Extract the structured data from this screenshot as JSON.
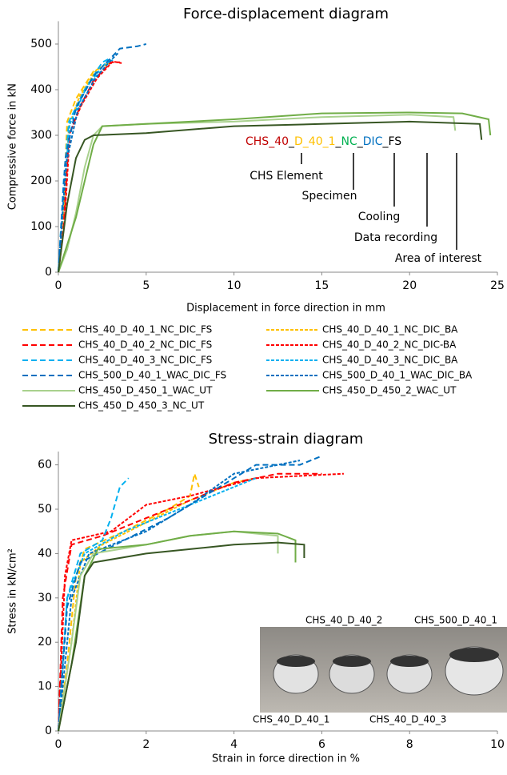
{
  "chart_data": [
    {
      "type": "line",
      "title": "Force-displacement diagram",
      "xlabel": "Displacement in force direction in mm",
      "ylabel": "Compressive force in kN",
      "xlim": [
        0,
        25
      ],
      "xticks": [
        0,
        5,
        10,
        15,
        20,
        25
      ],
      "ylim": [
        0,
        550
      ],
      "yticks": [
        0,
        100,
        200,
        300,
        400,
        500
      ],
      "grid": false,
      "series": [
        {
          "name": "CHS_40_D_40_1_NC_DIC_FS",
          "color": "#ffc000",
          "line_style": "long-dash",
          "x": [
            0,
            0.3,
            0.5,
            1,
            2,
            3
          ],
          "values": [
            0,
            150,
            330,
            380,
            440,
            460
          ]
        },
        {
          "name": "CHS_40_D_40_1_NC_DIC_BA",
          "color": "#ffc000",
          "line_style": "short-dash",
          "x": [
            0,
            0.35,
            0.6,
            1.2,
            2.2,
            3
          ],
          "values": [
            0,
            160,
            320,
            385,
            445,
            462
          ]
        },
        {
          "name": "CHS_40_D_40_2_NC_DIC_FS",
          "color": "#ff0000",
          "line_style": "long-dash",
          "x": [
            0,
            0.3,
            0.6,
            1.2,
            2,
            3,
            3.5
          ],
          "values": [
            0,
            100,
            300,
            360,
            420,
            460,
            460
          ]
        },
        {
          "name": "CHS_40_D_40_2_NC_DIC-BA",
          "color": "#ff0000",
          "line_style": "short-dash",
          "x": [
            0,
            0.35,
            0.65,
            1.3,
            2.2,
            3.1,
            3.6
          ],
          "values": [
            0,
            110,
            305,
            365,
            425,
            462,
            458
          ]
        },
        {
          "name": "CHS_40_D_40_3_NC_DIC_FS",
          "color": "#00b0f0",
          "line_style": "long-dash",
          "x": [
            0,
            0.3,
            0.6,
            1.5,
            2.5,
            3
          ],
          "values": [
            0,
            200,
            330,
            400,
            460,
            470
          ]
        },
        {
          "name": "CHS_40_D_40_3_NC_DIC_BA",
          "color": "#00b0f0",
          "line_style": "short-dash",
          "x": [
            0,
            0.35,
            0.65,
            1.6,
            2.6,
            3.1
          ],
          "values": [
            0,
            190,
            325,
            405,
            455,
            465
          ]
        },
        {
          "name": "CHS_500_D_40_1_WAC_DIC_FS",
          "color": "#0070c0",
          "line_style": "long-dash",
          "x": [
            0,
            0.4,
            1,
            2,
            3,
            3.5,
            4.5,
            5
          ],
          "values": [
            0,
            250,
            360,
            430,
            470,
            490,
            495,
            500
          ]
        },
        {
          "name": "CHS_500_D_40_1_WAC_DIC_BA",
          "color": "#0070c0",
          "line_style": "short-dash",
          "x": [
            0,
            0.45,
            1.1,
            2.1,
            3,
            3.4
          ],
          "values": [
            0,
            240,
            355,
            425,
            465,
            480
          ]
        },
        {
          "name": "CHS_450_D_450_1_WAC_UT",
          "color": "#a9d18e",
          "line_style": "solid",
          "x": [
            0,
            0.5,
            1,
            1.5,
            2,
            2.5,
            5,
            10,
            15,
            20,
            22.5,
            22.6
          ],
          "values": [
            0,
            50,
            130,
            230,
            300,
            320,
            325,
            330,
            340,
            345,
            340,
            310
          ]
        },
        {
          "name": "CHS_450_D_450_2_WAC_UT",
          "color": "#70ad47",
          "line_style": "solid",
          "x": [
            0,
            1,
            2,
            2.5,
            5,
            10,
            15,
            20,
            23,
            24.5,
            24.6
          ],
          "values": [
            0,
            120,
            280,
            320,
            325,
            335,
            348,
            350,
            348,
            335,
            300
          ]
        },
        {
          "name": "CHS_450_D_450_3_NC_UT",
          "color": "#375623",
          "line_style": "solid",
          "x": [
            0,
            0.5,
            1,
            1.5,
            2,
            5,
            10,
            15,
            20,
            24,
            24.1
          ],
          "values": [
            0,
            150,
            250,
            290,
            300,
            305,
            320,
            325,
            330,
            325,
            290
          ]
        }
      ],
      "annotation": {
        "parts": [
          {
            "text": "CHS_40",
            "color": "#c00000"
          },
          {
            "text": "_",
            "color": "#000000"
          },
          {
            "text": "D_40_1",
            "color": "#ffc000"
          },
          {
            "text": "_",
            "color": "#000000"
          },
          {
            "text": "NC",
            "color": "#00b050"
          },
          {
            "text": "_",
            "color": "#000000"
          },
          {
            "text": "DIC",
            "color": "#0070c0"
          },
          {
            "text": "_FS",
            "color": "#000000"
          }
        ],
        "callouts": [
          {
            "label": "CHS Element",
            "color": "#c00000"
          },
          {
            "label": "Specimen",
            "color": "#ffc000"
          },
          {
            "label": "Cooling",
            "color": "#00b050"
          },
          {
            "label": "Data recording",
            "color": "#0070c0"
          },
          {
            "label": "Area of interest",
            "color": "#000000"
          }
        ]
      }
    },
    {
      "type": "line",
      "title": "Stress-strain diagram",
      "xlabel": "Strain in force direction in %",
      "ylabel": "Stress in kN/cm²",
      "xlim": [
        0,
        10
      ],
      "xticks": [
        0,
        2,
        4,
        6,
        8,
        10
      ],
      "ylim": [
        0,
        63
      ],
      "yticks": [
        0,
        10,
        20,
        30,
        40,
        50,
        60
      ],
      "grid": false,
      "series": [
        {
          "color": "#ffc000",
          "line_style": "long-dash",
          "x": [
            0,
            0.2,
            0.4,
            0.6,
            1.5,
            2.5,
            3,
            3.1,
            3.2
          ],
          "values": [
            0,
            15,
            35,
            41,
            45,
            50,
            53,
            58,
            55
          ]
        },
        {
          "color": "#ffc000",
          "line_style": "short-dash",
          "x": [
            0,
            0.3,
            0.5,
            1,
            2,
            3,
            4,
            4.5
          ],
          "values": [
            0,
            20,
            38,
            42,
            47,
            52,
            56,
            57
          ]
        },
        {
          "color": "#ff0000",
          "line_style": "long-dash",
          "x": [
            0,
            0.1,
            0.3,
            1,
            2,
            3,
            4,
            5,
            6
          ],
          "values": [
            0,
            30,
            42,
            44,
            48,
            52,
            56,
            58,
            58
          ]
        },
        {
          "color": "#ff0000",
          "line_style": "short-dash",
          "x": [
            0,
            0.15,
            0.3,
            1.2,
            2,
            3,
            4.5,
            6.5
          ],
          "values": [
            0,
            35,
            43,
            45,
            51,
            53,
            57,
            58
          ]
        },
        {
          "color": "#00b0f0",
          "line_style": "long-dash",
          "x": [
            0,
            0.2,
            0.5,
            1,
            1.2,
            1.4,
            1.6
          ],
          "values": [
            0,
            30,
            40,
            43,
            48,
            55,
            57
          ]
        },
        {
          "color": "#00b0f0",
          "line_style": "short-dash",
          "x": [
            0,
            0.2,
            0.6,
            1.5,
            2.5,
            3.5,
            4.5
          ],
          "values": [
            0,
            30,
            40,
            45,
            49,
            53,
            57
          ]
        },
        {
          "color": "#0070c0",
          "line_style": "long-dash",
          "x": [
            0,
            0.2,
            0.5,
            1.5,
            2.5,
            3.5,
            4.5,
            5.5,
            6
          ],
          "values": [
            0,
            28,
            38,
            43,
            48,
            54,
            60,
            60,
            62
          ]
        },
        {
          "color": "#0070c0",
          "line_style": "short-dash",
          "x": [
            0,
            0.3,
            0.7,
            2,
            3,
            4,
            5,
            5.5
          ],
          "values": [
            0,
            30,
            40,
            45,
            51,
            58,
            60,
            61
          ]
        },
        {
          "color": "#a9d18e",
          "line_style": "solid",
          "x": [
            0,
            0.3,
            0.5,
            0.8,
            2,
            3,
            4,
            5,
            5
          ],
          "values": [
            0,
            20,
            35,
            40,
            42,
            44,
            45,
            44,
            40
          ]
        },
        {
          "color": "#70ad47",
          "line_style": "solid",
          "x": [
            0,
            0.3,
            0.6,
            0.9,
            2,
            3,
            4,
            5,
            5.4,
            5.4
          ],
          "values": [
            0,
            15,
            35,
            41,
            42,
            44,
            45,
            44.5,
            43,
            38
          ]
        },
        {
          "color": "#375623",
          "line_style": "solid",
          "x": [
            0,
            0.4,
            0.6,
            0.8,
            2,
            3,
            4,
            5,
            5.6,
            5.6
          ],
          "values": [
            0,
            20,
            35,
            38,
            40,
            41,
            42,
            42.5,
            42,
            39
          ]
        }
      ],
      "inset_labels": [
        "CHS_40_D_40_2",
        "CHS_500_D_40_1",
        "CHS_40_D_40_1",
        "CHS_40_D_40_3"
      ]
    }
  ]
}
